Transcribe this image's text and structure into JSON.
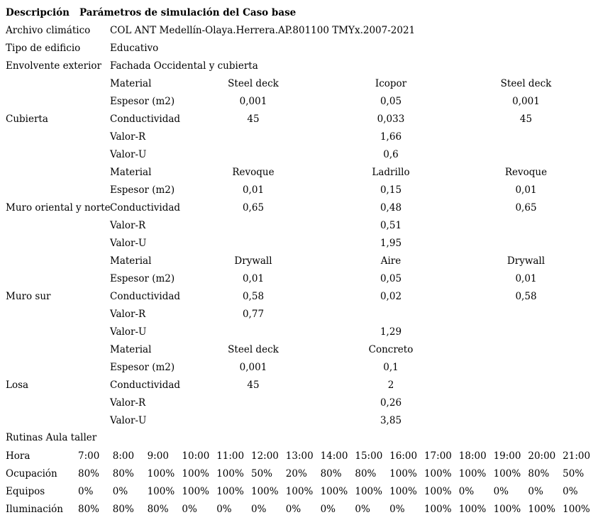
{
  "colors": {
    "text": "#000000",
    "background": "#ffffff"
  },
  "title": {
    "label": "Descripción",
    "text": "Parámetros de simulación del Caso base"
  },
  "info_rows": [
    {
      "label": "Archivo climático",
      "value": "COL ANT Medellín-Olaya.Herrera.AP.801100 TMYx.2007-2021"
    },
    {
      "label": "Tipo de edificio",
      "value": "Educativo"
    },
    {
      "label": "Envolvente exterior",
      "value": "Fachada Occidental y cubierta"
    }
  ],
  "construction_sections": [
    {
      "name": "Cubierta",
      "rows": [
        {
          "property": "Material",
          "values": [
            "Steel deck",
            "Icopor",
            "Steel deck"
          ]
        },
        {
          "property": "Espesor (m2)",
          "values": [
            "0,001",
            "0,05",
            "0,001"
          ]
        },
        {
          "property": "Conductividad",
          "values": [
            "45",
            "0,033",
            "45"
          ]
        },
        {
          "property": "Valor-R",
          "values": [
            "",
            "1,66",
            ""
          ]
        },
        {
          "property": "Valor-U",
          "values": [
            "",
            "0,6",
            ""
          ]
        }
      ]
    },
    {
      "name": "Muro oriental y norte",
      "rows": [
        {
          "property": "Material",
          "values": [
            "Revoque",
            "Ladrillo",
            "Revoque"
          ]
        },
        {
          "property": "Espesor (m2)",
          "values": [
            "0,01",
            "0,15",
            "0,01"
          ]
        },
        {
          "property": "Conductividad",
          "values": [
            "0,65",
            "0,48",
            "0,65"
          ]
        },
        {
          "property": "Valor-R",
          "values": [
            "",
            "0,51",
            ""
          ]
        },
        {
          "property": "Valor-U",
          "values": [
            "",
            "1,95",
            ""
          ]
        }
      ]
    },
    {
      "name": "Muro sur",
      "rows": [
        {
          "property": "Material",
          "values": [
            "Drywall",
            "Aire",
            "Drywall"
          ]
        },
        {
          "property": "Espesor (m2)",
          "values": [
            "0,01",
            "0,05",
            "0,01"
          ]
        },
        {
          "property": "Conductividad",
          "values": [
            "0,58",
            "0,02",
            "0,58"
          ]
        },
        {
          "property": "Valor-R",
          "values": [
            "0,77",
            "",
            ""
          ]
        },
        {
          "property": "Valor-U",
          "values": [
            "",
            "1,29",
            ""
          ]
        }
      ]
    },
    {
      "name": "Losa",
      "rows": [
        {
          "property": "Material",
          "values": [
            "Steel deck",
            "Concreto",
            ""
          ]
        },
        {
          "property": "Espesor (m2)",
          "values": [
            "0,001",
            "0,1",
            ""
          ]
        },
        {
          "property": "Conductividad",
          "values": [
            "45",
            "2",
            ""
          ]
        },
        {
          "property": "Valor-R",
          "values": [
            "",
            "0,26",
            ""
          ]
        },
        {
          "property": "Valor-U",
          "values": [
            "",
            "3,85",
            ""
          ]
        }
      ]
    }
  ],
  "routines": {
    "header": "Rutinas Aula taller",
    "hour_label": "Hora",
    "hours": [
      "7:00",
      "8:00",
      "9:00",
      "10:00",
      "11:00",
      "12:00",
      "13:00",
      "14:00",
      "15:00",
      "16:00",
      "17:00",
      "18:00",
      "19:00",
      "20:00",
      "21:00"
    ],
    "rows": [
      {
        "label": "Ocupación",
        "values": [
          "80%",
          "80%",
          "100%",
          "100%",
          "100%",
          "50%",
          "20%",
          "80%",
          "80%",
          "100%",
          "100%",
          "100%",
          "100%",
          "80%",
          "50%"
        ]
      },
      {
        "label": "Equipos",
        "values": [
          "0%",
          "0%",
          "100%",
          "100%",
          "100%",
          "100%",
          "100%",
          "100%",
          "100%",
          "100%",
          "100%",
          "0%",
          "0%",
          "0%",
          "0%"
        ]
      },
      {
        "label": "Iluminación",
        "values": [
          "80%",
          "80%",
          "80%",
          "0%",
          "0%",
          "0%",
          "0%",
          "0%",
          "0%",
          "0%",
          "100%",
          "100%",
          "100%",
          "100%",
          "100%"
        ]
      }
    ]
  }
}
